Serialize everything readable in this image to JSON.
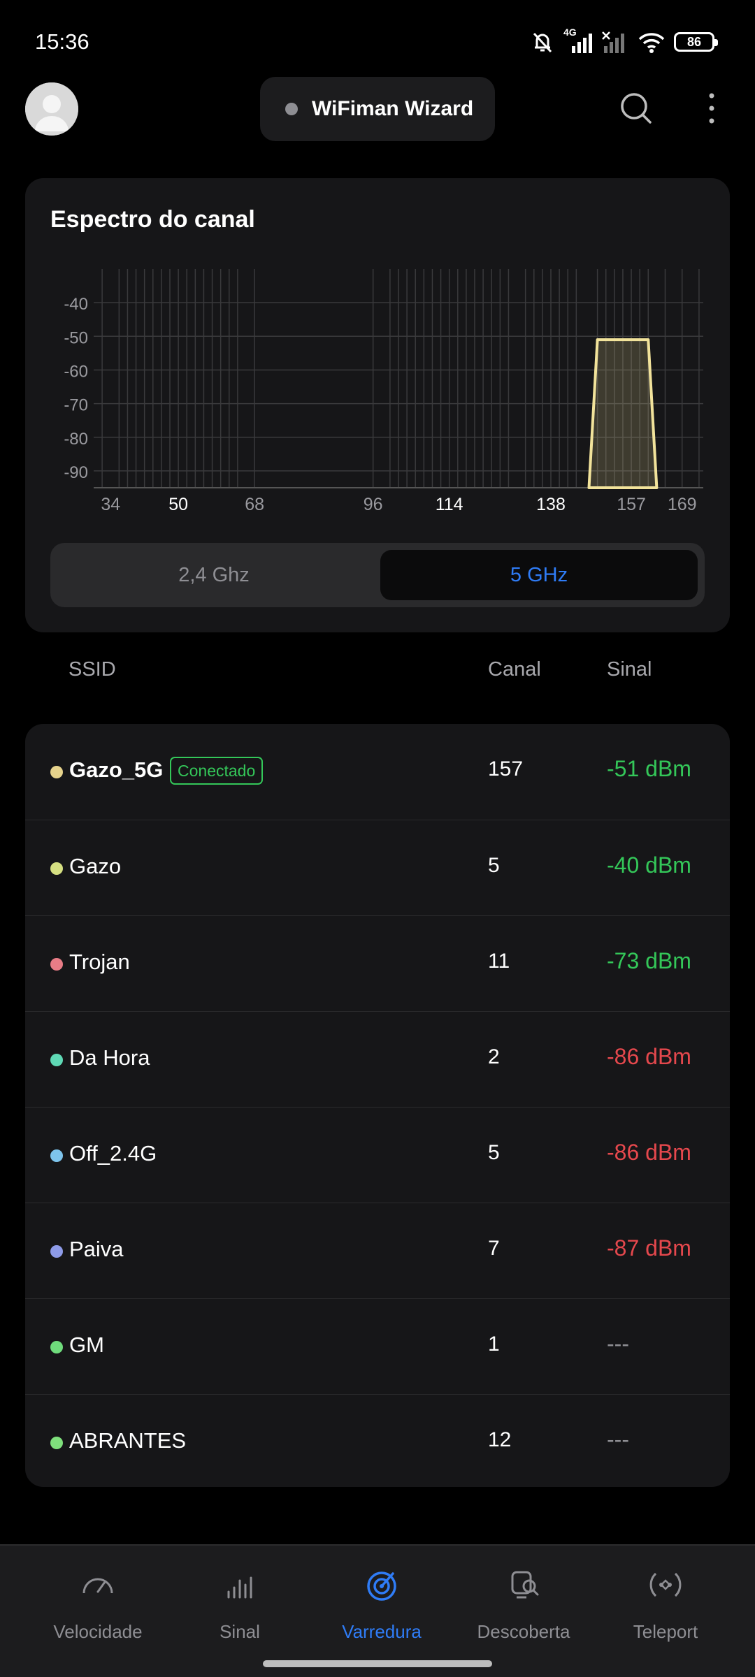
{
  "status_bar": {
    "time": "15:36",
    "network_type": "4G",
    "battery": "86"
  },
  "header": {
    "wizard_label": "WiFiman Wizard"
  },
  "spectrum": {
    "title": "Espectro do canal",
    "bands": [
      "2,4 Ghz",
      "5 GHz"
    ],
    "selected_band": "5 GHz"
  },
  "chart_data": {
    "type": "area",
    "title": "",
    "x_ticks": [
      {
        "label": "34",
        "value": 34,
        "bold": false
      },
      {
        "label": "50",
        "value": 50,
        "bold": true
      },
      {
        "label": "68",
        "value": 68,
        "bold": false
      },
      {
        "label": "96",
        "value": 96,
        "bold": false
      },
      {
        "label": "114",
        "value": 114,
        "bold": true
      },
      {
        "label": "138",
        "value": 138,
        "bold": true
      },
      {
        "label": "157",
        "value": 157,
        "bold": false
      },
      {
        "label": "169",
        "value": 169,
        "bold": false
      }
    ],
    "y_ticks": [
      -40,
      -50,
      -60,
      -70,
      -80,
      -90
    ],
    "ylim": [
      -95,
      -30
    ],
    "xlim": [
      30,
      174
    ],
    "grid": true,
    "channel_grid": [
      32,
      36,
      38,
      40,
      42,
      44,
      46,
      48,
      50,
      52,
      54,
      56,
      58,
      60,
      62,
      64,
      68,
      96,
      100,
      102,
      104,
      106,
      108,
      110,
      112,
      114,
      116,
      118,
      120,
      122,
      124,
      126,
      128,
      132,
      134,
      136,
      138,
      140,
      142,
      144,
      149,
      151,
      153,
      155,
      157,
      159,
      161,
      165,
      169,
      173
    ],
    "series": [
      {
        "channel": 157,
        "signal_dbm": -51,
        "x": [
          147,
          149,
          161,
          163
        ],
        "y": [
          -95,
          -51,
          -51,
          -95
        ],
        "color": "#f2e39b"
      }
    ]
  },
  "list": {
    "col_ssid": "SSID",
    "col_channel": "Canal",
    "col_signal": "Sinal",
    "networks": [
      {
        "ssid": "Gazo_5G",
        "badge": "Conectado",
        "channel": "157",
        "signal": "-51 dBm",
        "dot_color": "#e6d38c",
        "signal_color": "#34c759",
        "bold": true
      },
      {
        "ssid": "Gazo",
        "badge": "",
        "channel": "5",
        "signal": "-40 dBm",
        "dot_color": "#d6e082",
        "signal_color": "#34c759",
        "bold": false
      },
      {
        "ssid": "Trojan",
        "badge": "",
        "channel": "11",
        "signal": "-73 dBm",
        "dot_color": "#e87c86",
        "signal_color": "#34c759",
        "bold": false
      },
      {
        "ssid": "Da Hora",
        "badge": "",
        "channel": "2",
        "signal": "-86 dBm",
        "dot_color": "#5fd9b5",
        "signal_color": "#e5484d",
        "bold": false
      },
      {
        "ssid": "Off_2.4G",
        "badge": "",
        "channel": "5",
        "signal": "-86 dBm",
        "dot_color": "#7ec4ec",
        "signal_color": "#e5484d",
        "bold": false
      },
      {
        "ssid": "Paiva",
        "badge": "",
        "channel": "7",
        "signal": "-87 dBm",
        "dot_color": "#8e9be8",
        "signal_color": "#e5484d",
        "bold": false
      },
      {
        "ssid": "GM",
        "badge": "",
        "channel": "1",
        "signal": "---",
        "dot_color": "#6fdc7c",
        "signal_color": "#8e8e93",
        "bold": false
      },
      {
        "ssid": "ABRANTES",
        "badge": "",
        "channel": "12",
        "signal": "---",
        "dot_color": "#7fe07c",
        "signal_color": "#8e8e93",
        "bold": false
      }
    ]
  },
  "nav": {
    "items": [
      {
        "label": "Velocidade",
        "icon": "speedometer-icon",
        "active": false
      },
      {
        "label": "Sinal",
        "icon": "signal-bars-icon",
        "active": false
      },
      {
        "label": "Varredura",
        "icon": "radar-scan-icon",
        "active": true
      },
      {
        "label": "Descoberta",
        "icon": "device-discovery-icon",
        "active": false
      },
      {
        "label": "Teleport",
        "icon": "teleport-icon",
        "active": false
      }
    ]
  },
  "colors": {
    "accent": "#2f7cf6",
    "good": "#34c759",
    "bad": "#e5484d",
    "card": "#161618"
  }
}
